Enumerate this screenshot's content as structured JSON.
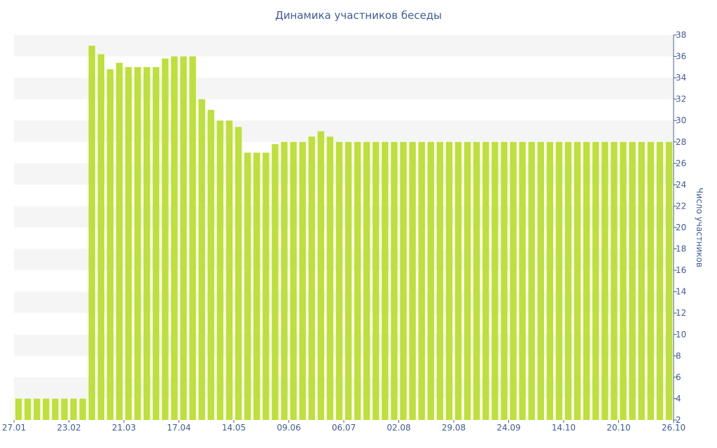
{
  "chart_data": {
    "type": "bar",
    "title": "Динамика участников беседы",
    "xlabel": "",
    "ylabel": "Число участников",
    "ylim": [
      2,
      38
    ],
    "ytick_step": 2,
    "y_axis_side": "right",
    "grid": "horizontal alternating bands",
    "legend": "none",
    "bar_color": "#bde03a",
    "band_color": "#f5f5f5",
    "text_color": "#3f5b98",
    "x_tick_labels": [
      "27.01",
      "23.02",
      "21.03",
      "17.04",
      "14.05",
      "09.06",
      "06.07",
      "02.08",
      "29.08",
      "24.09",
      "14.10",
      "20.10",
      "26.10"
    ],
    "values": [
      4,
      4,
      4,
      4,
      4,
      4,
      4,
      4,
      37,
      36.2,
      34.8,
      35.4,
      35,
      35,
      35,
      35,
      35.8,
      36,
      36,
      36,
      32,
      31,
      30,
      30,
      29.4,
      27,
      27,
      27,
      27.8,
      28,
      28,
      28,
      28.5,
      29,
      28.5,
      28,
      28,
      28,
      28,
      28,
      28,
      28,
      28,
      28,
      28,
      28,
      28,
      28,
      28,
      28,
      28,
      28,
      28,
      28,
      28,
      28,
      28,
      28,
      28,
      28,
      28,
      28,
      28,
      28,
      28,
      28,
      28,
      28,
      28,
      28,
      28,
      28
    ]
  }
}
